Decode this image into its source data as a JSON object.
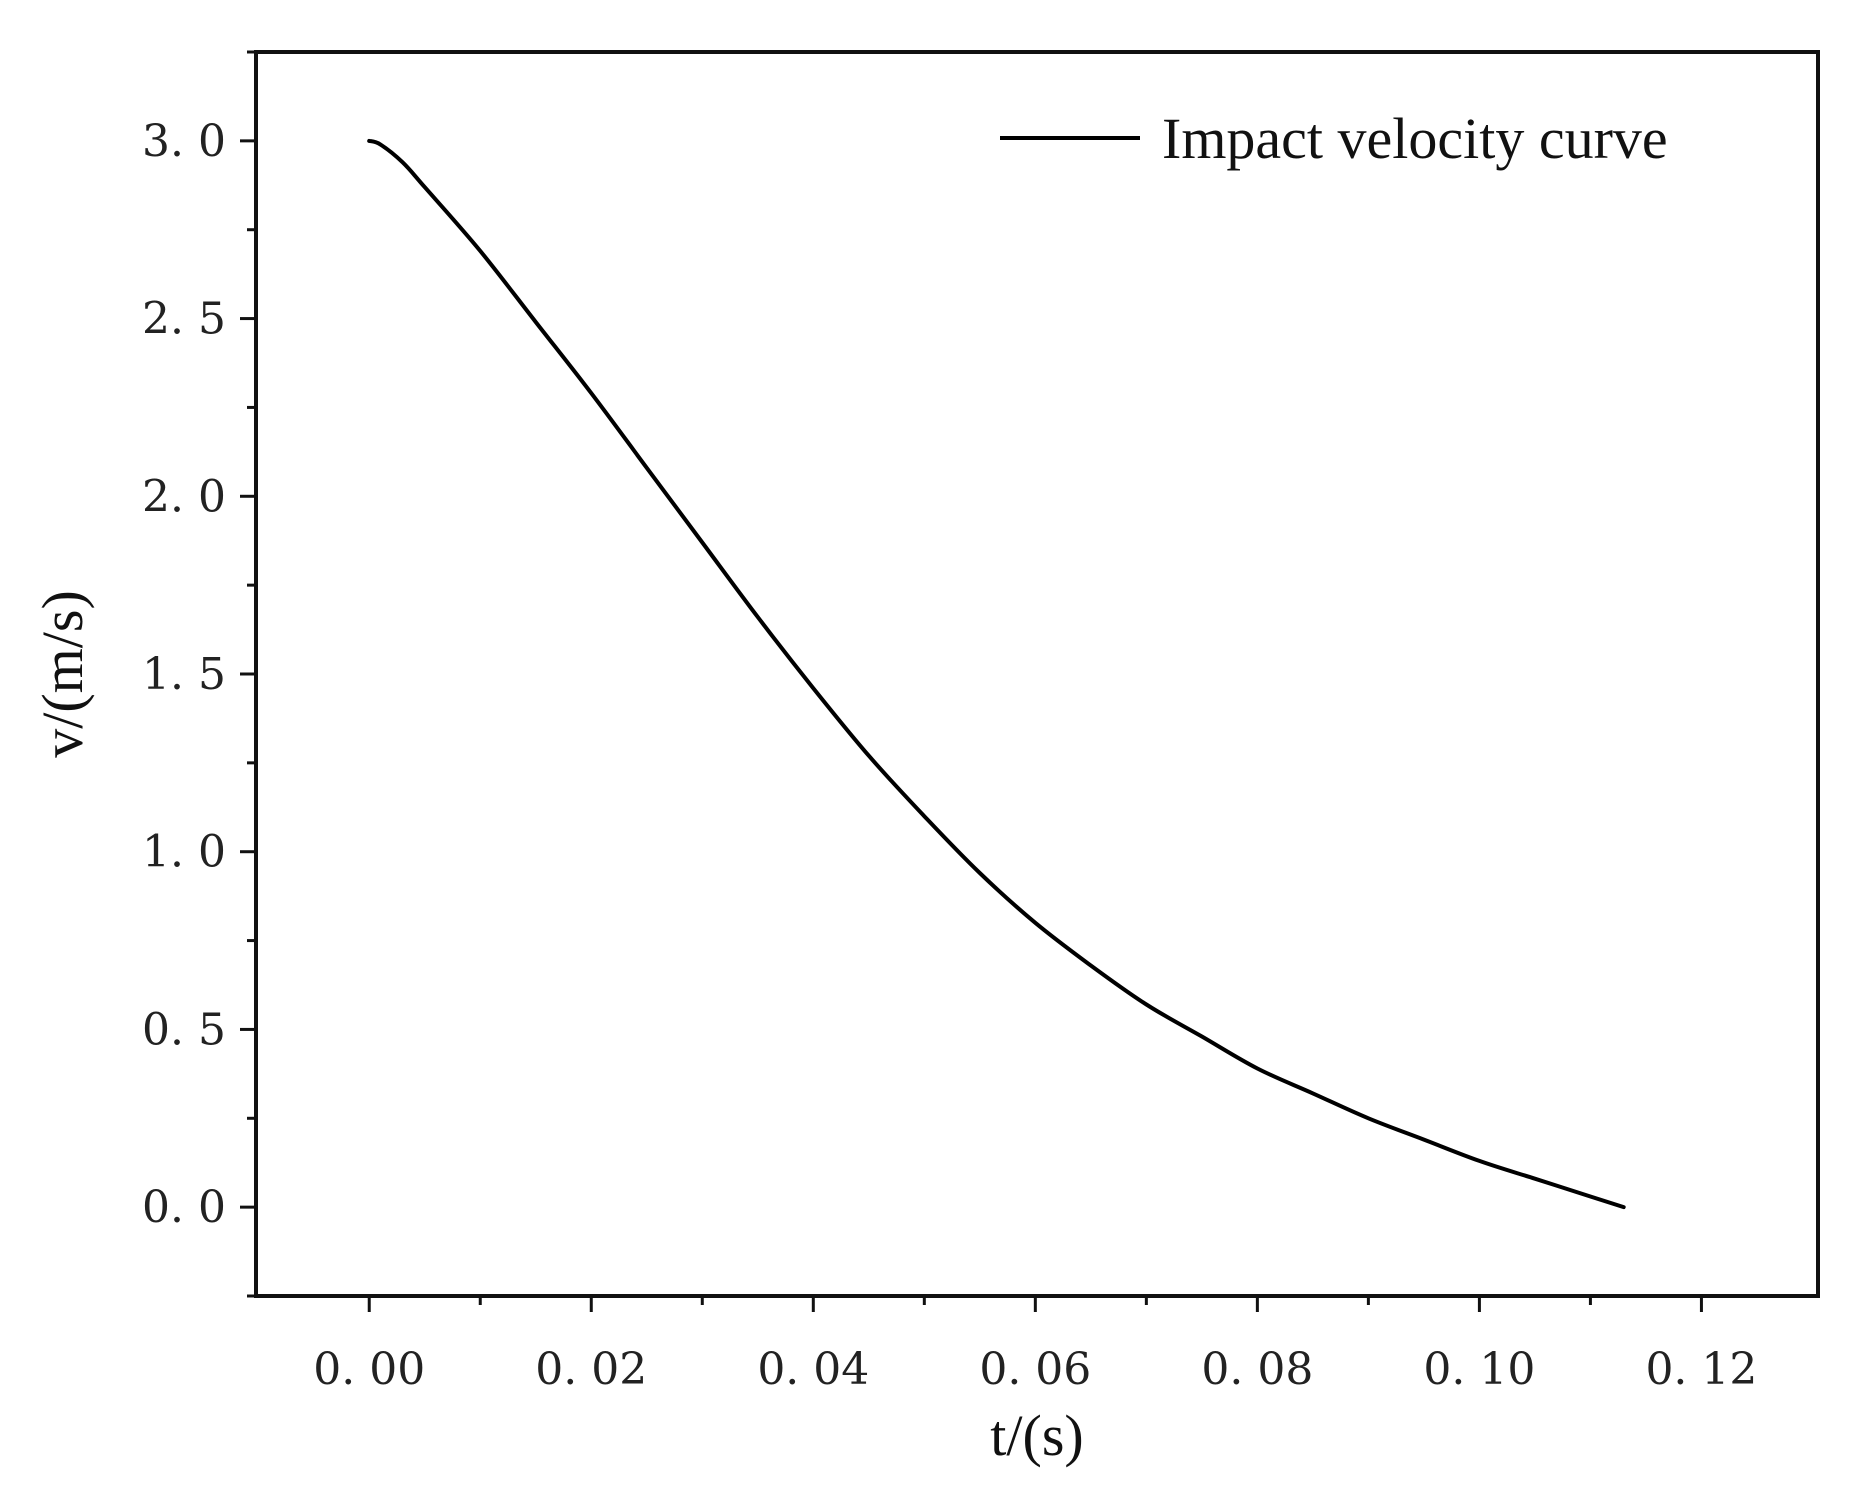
{
  "chart_data": {
    "type": "line",
    "title": "",
    "xlabel": "t/(s)",
    "ylabel": "v/(m/s)",
    "xlim": [
      -0.0102,
      0.1305
    ],
    "ylim": [
      -0.25,
      3.25
    ],
    "xticks": [
      0.0,
      0.02,
      0.04,
      0.06,
      0.08,
      0.1,
      0.12
    ],
    "xtick_labels": [
      "0. 00",
      "0. 02",
      "0. 04",
      "0. 06",
      "0. 08",
      "0. 10",
      "0. 12"
    ],
    "yticks": [
      0.0,
      0.5,
      1.0,
      1.5,
      2.0,
      2.5,
      3.0
    ],
    "ytick_labels": [
      "0. 0",
      "0. 5",
      "1. 0",
      "1. 5",
      "2. 0",
      "2. 5",
      "3. 0"
    ],
    "grid": false,
    "legend_position": "top-right",
    "series": [
      {
        "name": "Impact velocity curve",
        "color": "#000000",
        "x": [
          0.0,
          0.001,
          0.003,
          0.005,
          0.01,
          0.015,
          0.02,
          0.025,
          0.03,
          0.035,
          0.04,
          0.045,
          0.05,
          0.055,
          0.06,
          0.065,
          0.07,
          0.075,
          0.08,
          0.085,
          0.09,
          0.095,
          0.1,
          0.105,
          0.11,
          0.113
        ],
        "y": [
          3.0,
          2.99,
          2.94,
          2.87,
          2.69,
          2.49,
          2.29,
          2.08,
          1.87,
          1.66,
          1.46,
          1.27,
          1.1,
          0.94,
          0.8,
          0.68,
          0.57,
          0.48,
          0.39,
          0.32,
          0.25,
          0.19,
          0.13,
          0.08,
          0.03,
          0.0
        ]
      }
    ]
  }
}
